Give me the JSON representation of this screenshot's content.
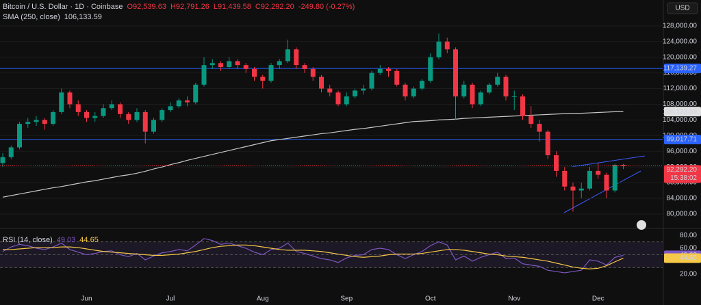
{
  "chart_data": [
    {
      "type": "candlestick",
      "title": "Bitcoin / U.S. Dollar · 1D · Coinbase",
      "currency": "USD",
      "ohlc_text": [
        "O92,539.63",
        "H92,791.26",
        "L91,439.58",
        "C92,292.20",
        "-249.80 (-0.27%)"
      ],
      "up_color": "#089981",
      "down_color": "#f23645",
      "categories": [
        null,
        null,
        null,
        null,
        null,
        null,
        null,
        null,
        null,
        null,
        "Jun",
        null,
        null,
        null,
        null,
        null,
        null,
        null,
        null,
        null,
        "Jul",
        null,
        null,
        null,
        null,
        null,
        null,
        null,
        null,
        null,
        null,
        "Aug",
        null,
        null,
        null,
        null,
        null,
        null,
        null,
        null,
        null,
        "Sep",
        null,
        null,
        null,
        null,
        null,
        null,
        null,
        null,
        null,
        "Oct",
        null,
        null,
        null,
        null,
        null,
        null,
        null,
        null,
        null,
        "Nov",
        null,
        null,
        null,
        null,
        null,
        null,
        null,
        null,
        null,
        "Dec",
        null,
        null,
        null
      ],
      "ohlc": [
        [
          93000,
          95500,
          92000,
          94500
        ],
        [
          94500,
          97500,
          94000,
          97000
        ],
        [
          97000,
          103500,
          96500,
          103000
        ],
        [
          103000,
          104500,
          102000,
          103500
        ],
        [
          103500,
          105000,
          102500,
          104000
        ],
        [
          104000,
          104500,
          101500,
          103000
        ],
        [
          103000,
          106500,
          102500,
          106000
        ],
        [
          106000,
          112000,
          105500,
          111000
        ],
        [
          111000,
          111500,
          107000,
          108000
        ],
        [
          108000,
          109000,
          105000,
          106000
        ],
        [
          106000,
          106500,
          103500,
          104500
        ],
        [
          104500,
          106000,
          103500,
          105000
        ],
        [
          105000,
          108000,
          104500,
          107000
        ],
        [
          107000,
          109000,
          106500,
          108000
        ],
        [
          108000,
          108500,
          104500,
          105500
        ],
        [
          105500,
          106000,
          103000,
          104000
        ],
        [
          104000,
          107000,
          103500,
          106000
        ],
        [
          106000,
          106500,
          98000,
          101000
        ],
        [
          101000,
          104500,
          100500,
          104000
        ],
        [
          104000,
          107000,
          103500,
          106500
        ],
        [
          106500,
          108500,
          106000,
          107500
        ],
        [
          107500,
          109500,
          107000,
          109000
        ],
        [
          109000,
          110000,
          107500,
          108500
        ],
        [
          108500,
          113500,
          108000,
          113000
        ],
        [
          113000,
          120000,
          112500,
          118000
        ],
        [
          118000,
          119500,
          117000,
          118500
        ],
        [
          118500,
          119000,
          116500,
          117500
        ],
        [
          117500,
          120000,
          117000,
          119000
        ],
        [
          119000,
          119500,
          117000,
          118000
        ],
        [
          118000,
          118500,
          116000,
          117000
        ],
        [
          117000,
          117500,
          114000,
          115000
        ],
        [
          115000,
          115500,
          112000,
          114000
        ],
        [
          114000,
          118500,
          113500,
          118000
        ],
        [
          118000,
          119500,
          117000,
          119000
        ],
        [
          119000,
          124500,
          118500,
          122000
        ],
        [
          122000,
          122500,
          117000,
          118000
        ],
        [
          118000,
          118500,
          116000,
          117000
        ],
        [
          117000,
          117500,
          114000,
          115000
        ],
        [
          115000,
          115500,
          111000,
          112000
        ],
        [
          112000,
          113000,
          110000,
          111000
        ],
        [
          111000,
          111500,
          107500,
          108000
        ],
        [
          108000,
          111000,
          107500,
          110000
        ],
        [
          110000,
          112000,
          109500,
          111500
        ],
        [
          111500,
          113000,
          110500,
          112000
        ],
        [
          112000,
          116500,
          111500,
          116000
        ],
        [
          116000,
          118000,
          115500,
          117000
        ],
        [
          117000,
          117500,
          115000,
          116500
        ],
        [
          116500,
          117000,
          112500,
          113000
        ],
        [
          113000,
          113500,
          109000,
          110000
        ],
        [
          110000,
          112500,
          109500,
          112000
        ],
        [
          112000,
          114500,
          111500,
          114000
        ],
        [
          114000,
          121000,
          113500,
          120000
        ],
        [
          120000,
          126000,
          119500,
          124000
        ],
        [
          124000,
          125000,
          121000,
          122000
        ],
        [
          122000,
          122500,
          104000,
          110000
        ],
        [
          110000,
          114000,
          109500,
          113000
        ],
        [
          113000,
          113500,
          107000,
          108000
        ],
        [
          108000,
          111500,
          107500,
          111000
        ],
        [
          111000,
          113500,
          110500,
          113000
        ],
        [
          113000,
          116000,
          112500,
          115000
        ],
        [
          115000,
          115500,
          109000,
          110000
        ],
        [
          110000,
          111500,
          106500,
          110000
        ],
        [
          110000,
          110500,
          104000,
          105000
        ],
        [
          105000,
          107500,
          102000,
          103000
        ],
        [
          103000,
          104000,
          98500,
          101000
        ],
        [
          101000,
          101500,
          94000,
          95000
        ],
        [
          95000,
          96000,
          89500,
          91000
        ],
        [
          91000,
          92000,
          86000,
          87000
        ],
        [
          87000,
          88000,
          80600,
          86000
        ],
        [
          86000,
          88000,
          84000,
          86500
        ],
        [
          86500,
          92000,
          86000,
          91000
        ],
        [
          91000,
          93000,
          89000,
          90000
        ],
        [
          90000,
          90500,
          84000,
          86000
        ],
        [
          86000,
          92800,
          85500,
          92539.63
        ],
        [
          92539.63,
          92791.26,
          91439.58,
          92292.2
        ]
      ],
      "series": [
        {
          "name": "SMA (250, close)",
          "color": "#c8c8c8",
          "value_label": "106,133.59",
          "values": [
            84300,
            84700,
            85100,
            85500,
            85900,
            86300,
            86700,
            87000,
            87400,
            87800,
            88200,
            88500,
            88900,
            89300,
            89700,
            90000,
            90400,
            90900,
            91500,
            92000,
            92600,
            93100,
            93700,
            94200,
            94700,
            95200,
            95700,
            96200,
            96700,
            97200,
            97700,
            98200,
            98700,
            99000,
            99300,
            99600,
            99900,
            100200,
            100500,
            100700,
            101000,
            101300,
            101600,
            101800,
            102100,
            102400,
            102700,
            103000,
            103300,
            103600,
            103700,
            103800,
            104000,
            104100,
            104200,
            104400,
            104500,
            104600,
            104700,
            104800,
            104900,
            105000,
            105100,
            105200,
            105300,
            105400,
            105500,
            105600,
            105700,
            105700,
            105800,
            105900,
            106000,
            106100,
            106133.59
          ]
        }
      ],
      "levels": [
        {
          "value": 117139.27,
          "label": "117,139.27",
          "color": "#2962ff"
        },
        {
          "value": 99017.71,
          "label": "99,017.71",
          "color": "#2962ff"
        }
      ],
      "last_label": "92,292.20",
      "countdown": "15:38:02",
      "ylim": [
        76500,
        134600
      ],
      "yticks": [
        {
          "value": 80000,
          "label": "80,000.00"
        },
        {
          "value": 84000,
          "label": "84,000.00"
        },
        {
          "value": 88000,
          "label": "88,000.00"
        },
        {
          "value": 92000,
          "label": "92,000.00"
        },
        {
          "value": 96000,
          "label": "96,000.00"
        },
        {
          "value": 100000,
          "label": "100,000.00"
        },
        {
          "value": 104000,
          "label": "104,000.00"
        },
        {
          "value": 108000,
          "label": "108,000.00"
        },
        {
          "value": 112000,
          "label": "112,000.00"
        },
        {
          "value": 116000,
          "label": "116,000.00"
        },
        {
          "value": 120000,
          "label": "120,000.00"
        },
        {
          "value": 124000,
          "label": "124,000.00"
        },
        {
          "value": 128000,
          "label": "128,000.00"
        }
      ],
      "grid": true
    },
    {
      "type": "line",
      "title": "RSI (14, close)",
      "series": [
        {
          "name": "RSI",
          "color": "#7e57c2",
          "values": [
            55,
            62,
            66,
            64,
            60,
            58,
            62,
            68,
            58,
            54,
            50,
            52,
            55,
            56,
            50,
            47,
            52,
            42,
            48,
            53,
            55,
            58,
            56,
            65,
            75,
            72,
            66,
            68,
            64,
            60,
            54,
            50,
            58,
            60,
            68,
            55,
            52,
            48,
            44,
            42,
            38,
            45,
            49,
            50,
            58,
            60,
            58,
            50,
            44,
            50,
            55,
            64,
            70,
            65,
            42,
            48,
            40,
            46,
            50,
            54,
            44,
            45,
            36,
            34,
            32,
            26,
            24,
            22,
            24,
            26,
            42,
            40,
            34,
            46,
            49.03
          ]
        },
        {
          "name": "RSI MA",
          "color": "#f7c948",
          "values": [
            58,
            58,
            59,
            60,
            61,
            61,
            61,
            62,
            62,
            61,
            59,
            57,
            55,
            54,
            53,
            52,
            51,
            50,
            49,
            49,
            50,
            51,
            53,
            55,
            58,
            61,
            63,
            64,
            65,
            65,
            64,
            62,
            60,
            58,
            57,
            57,
            57,
            56,
            55,
            53,
            51,
            49,
            47,
            46,
            47,
            48,
            50,
            51,
            51,
            51,
            52,
            54,
            56,
            58,
            58,
            57,
            55,
            53,
            51,
            50,
            48,
            47,
            46,
            44,
            42,
            40,
            37,
            34,
            31,
            29,
            28,
            29,
            33,
            39,
            44.65
          ]
        }
      ],
      "levels": [
        70,
        50,
        30
      ],
      "ylim": [
        5,
        88.6
      ],
      "yticks": [
        {
          "value": 80,
          "label": "80.00"
        },
        {
          "value": 60,
          "label": "60.00"
        },
        {
          "value": 40,
          "label": "40.00"
        },
        {
          "value": 20,
          "label": "20.00"
        }
      ]
    }
  ]
}
